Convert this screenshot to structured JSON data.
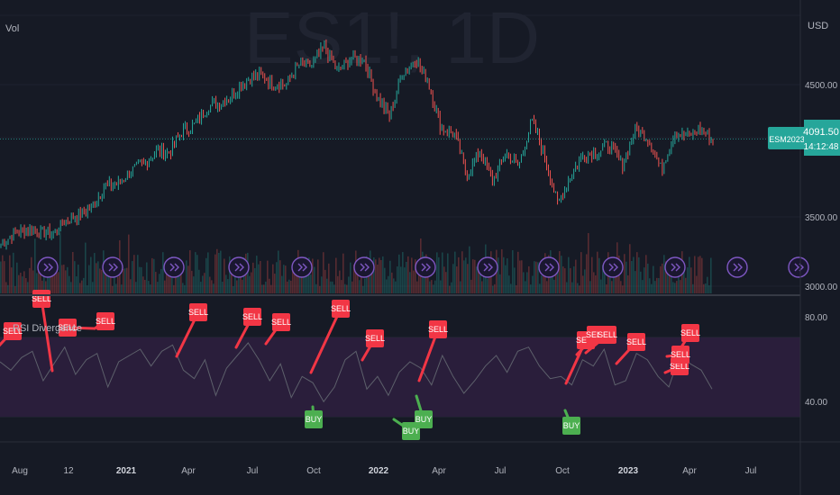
{
  "watermark": "ES1!, 1D",
  "volume_label": "Vol",
  "indicator_label": "RSI Divergence",
  "currency": "USD",
  "price_badge": {
    "symbol": "ESM2023",
    "price": "4091.50",
    "countdown": "14:12:48"
  },
  "colors": {
    "background": "#161a25",
    "up": "#26a69a",
    "down": "#ef5350",
    "sell_label": "#f23645",
    "buy_label": "#4caf50",
    "rsi_band": "#2a1e3b",
    "rsi_line": "#5d606b",
    "event_icon": "#7e57c2",
    "badge": "#26a69a"
  },
  "icons": [
    "event-arrow-icon"
  ],
  "chart_data": [
    {
      "type": "line",
      "title": "ES1!, 1D",
      "series": [
        {
          "values": [
            3300,
            3380,
            3420,
            3390,
            3380,
            3480,
            3520,
            3580,
            3740,
            3750,
            3850,
            3900,
            4000,
            3990,
            4150,
            4200,
            4340,
            4370,
            4430,
            4540,
            4580,
            4510,
            4500,
            4650,
            4640,
            4780,
            4600,
            4690,
            4700,
            4420,
            4260,
            4580,
            4700,
            4520,
            4170,
            4140,
            3820,
            4000,
            3780,
            3990,
            3890,
            4230,
            3970,
            3600,
            3820,
            3980,
            3990,
            4050,
            3890,
            4160,
            4100,
            3860,
            4140,
            4110,
            4170,
            4080
          ]
        }
      ],
      "x_ticks": [
        "Aug",
        "12",
        "2021",
        "Apr",
        "Jul",
        "Oct",
        "2022",
        "Apr",
        "Jul",
        "Oct",
        "2023",
        "Apr",
        "Jul"
      ],
      "y_ticks": [
        "4500.00",
        "3500.00",
        "3000.00"
      ],
      "last_price": 4091.5
    },
    {
      "type": "line",
      "title": "RSI Divergence",
      "y_ticks": [
        "80.00",
        "40.00"
      ],
      "band": [
        31,
        69
      ],
      "series": [
        {
          "values": [
            57,
            53,
            59,
            62,
            48,
            56,
            64,
            51,
            58,
            61,
            45,
            57,
            60,
            63,
            55,
            62,
            65,
            53,
            49,
            58,
            41,
            54,
            60,
            66,
            58,
            48,
            56,
            40,
            50,
            47,
            38,
            45,
            58,
            62,
            44,
            50,
            41,
            52,
            57,
            54,
            46,
            60,
            50,
            42,
            48,
            55,
            60,
            52,
            62,
            64,
            55,
            49,
            50,
            46,
            58,
            55,
            63,
            46,
            48,
            61,
            58,
            50,
            45,
            60,
            56,
            53,
            44
          ]
        }
      ],
      "signals": [
        {
          "label": "SELL",
          "type": "sell"
        },
        {
          "label": "SELL",
          "type": "sell"
        },
        {
          "label": "SELL",
          "type": "sell"
        },
        {
          "label": "SELL",
          "type": "sell"
        },
        {
          "label": "SELL",
          "type": "sell"
        },
        {
          "label": "SELL",
          "type": "sell"
        },
        {
          "label": "SELL",
          "type": "sell"
        },
        {
          "label": "SELL",
          "type": "sell"
        },
        {
          "label": "SELL",
          "type": "sell"
        },
        {
          "label": "SELL",
          "type": "sell"
        },
        {
          "label": "SELL",
          "type": "sell"
        },
        {
          "label": "SELL",
          "type": "sell"
        },
        {
          "label": "SELL",
          "type": "sell"
        },
        {
          "label": "SELL",
          "type": "sell"
        },
        {
          "label": "SELL",
          "type": "sell"
        },
        {
          "label": "SELL",
          "type": "sell"
        },
        {
          "label": "SELL",
          "type": "sell"
        },
        {
          "label": "BUY",
          "type": "buy"
        },
        {
          "label": "BUY",
          "type": "buy"
        },
        {
          "label": "BUY",
          "type": "buy"
        },
        {
          "label": "BUY",
          "type": "buy"
        }
      ]
    }
  ]
}
